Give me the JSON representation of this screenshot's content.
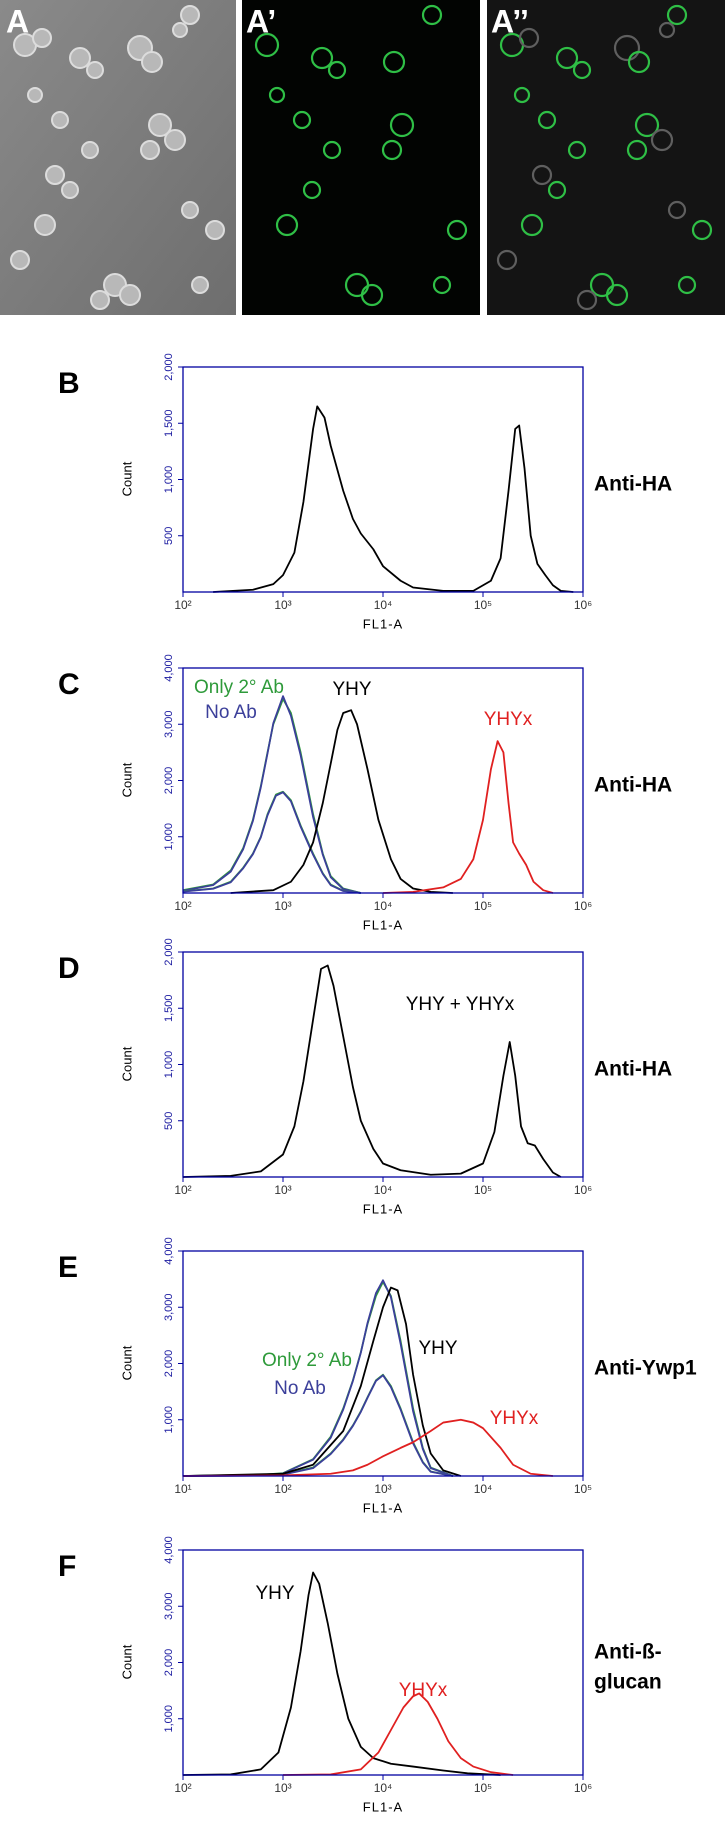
{
  "micrographs": {
    "a": "A",
    "a_prime": "A’",
    "a_double_prime": "A’’"
  },
  "chart_data": [
    {
      "type": "line",
      "panel": "B",
      "side_label": [
        "Anti-HA"
      ],
      "xlabel": "FL1-A",
      "ylabel": "Count",
      "xscale": "log",
      "xlim": [
        100,
        1000000
      ],
      "xticks": [
        {
          "value": 100,
          "label": "10²"
        },
        {
          "value": 1000,
          "label": "10³"
        },
        {
          "value": 10000,
          "label": "10⁴"
        },
        {
          "value": 100000,
          "label": "10⁵"
        },
        {
          "value": 1000000,
          "label": "10⁶"
        }
      ],
      "ylim": [
        0,
        2000
      ],
      "yticks": [
        500,
        {
          "value": 1000,
          "label": "1,000"
        },
        {
          "value": 1500,
          "label": "1,500"
        },
        {
          "value": 2000,
          "label": "2,000"
        }
      ],
      "series": [
        {
          "color": "#000000",
          "x": [
            200,
            500,
            800,
            1000,
            1300,
            1600,
            2000,
            2200,
            2600,
            3000,
            4000,
            5000,
            6000,
            8000,
            10000,
            15000,
            20000,
            40000,
            80000,
            120000,
            150000,
            180000,
            210000,
            230000,
            260000,
            300000,
            350000,
            420000,
            500000,
            600000,
            800000
          ],
          "values": [
            0,
            20,
            70,
            150,
            350,
            800,
            1450,
            1650,
            1550,
            1300,
            900,
            650,
            520,
            380,
            230,
            100,
            40,
            10,
            10,
            100,
            300,
            900,
            1450,
            1480,
            1100,
            500,
            250,
            150,
            60,
            10,
            0
          ]
        }
      ]
    },
    {
      "type": "line",
      "panel": "C",
      "side_label": [
        "Anti-HA"
      ],
      "xlabel": "FL1-A",
      "ylabel": "Count",
      "xscale": "log",
      "xlim": [
        100,
        1000000
      ],
      "xticks": [
        {
          "value": 100,
          "label": "10²"
        },
        {
          "value": 1000,
          "label": "10³"
        },
        {
          "value": 10000,
          "label": "10⁴"
        },
        {
          "value": 100000,
          "label": "10⁵"
        },
        {
          "value": 1000000,
          "label": "10⁶"
        }
      ],
      "ylim": [
        0,
        4000
      ],
      "yticks": [
        {
          "value": 1000,
          "label": "1,000"
        },
        {
          "value": 2000,
          "label": "2,000"
        },
        {
          "value": 3000,
          "label": "3,000"
        },
        {
          "value": 4000,
          "label": "4,000"
        }
      ],
      "series": [
        {
          "name": "Only 2° Ab",
          "color": "#2e9a3a",
          "x": [
            100,
            200,
            300,
            400,
            500,
            600,
            700,
            800,
            1000,
            1200,
            1500,
            2000,
            2500,
            3000,
            4000,
            6000
          ],
          "values": [
            50,
            150,
            400,
            800,
            1300,
            1900,
            2500,
            3000,
            3450,
            3200,
            2500,
            1400,
            700,
            300,
            80,
            0
          ]
        },
        {
          "name": "No Ab",
          "color": "#3b3f9a",
          "x": [
            100,
            200,
            300,
            400,
            500,
            600,
            700,
            800,
            1000,
            1200,
            1500,
            2000,
            2500,
            3000,
            4000,
            6000
          ],
          "values": [
            40,
            140,
            380,
            780,
            1280,
            1880,
            2480,
            3020,
            3500,
            3150,
            2450,
            1350,
            680,
            280,
            70,
            0
          ]
        },
        {
          "color": "#2e9a3a",
          "x": [
            100,
            200,
            300,
            400,
            500,
            600,
            700,
            850,
            1000,
            1200,
            1500,
            2000,
            2500,
            3000,
            4000,
            6000
          ],
          "values": [
            30,
            80,
            200,
            450,
            700,
            1000,
            1400,
            1750,
            1800,
            1650,
            1200,
            700,
            350,
            150,
            40,
            0
          ]
        },
        {
          "color": "#3b3f9a",
          "x": [
            100,
            200,
            300,
            400,
            500,
            600,
            700,
            850,
            1000,
            1200,
            1500,
            2000,
            2500,
            3000,
            4000,
            6000
          ],
          "values": [
            25,
            75,
            190,
            440,
            690,
            990,
            1380,
            1730,
            1790,
            1630,
            1180,
            680,
            340,
            140,
            35,
            0
          ]
        },
        {
          "name": "YHY",
          "color": "#000000",
          "x": [
            300,
            800,
            1200,
            1600,
            2000,
            2500,
            3000,
            3500,
            4000,
            4800,
            5500,
            7000,
            9000,
            12000,
            15000,
            20000,
            30000,
            50000
          ],
          "values": [
            0,
            50,
            200,
            500,
            900,
            1600,
            2300,
            2900,
            3200,
            3250,
            3000,
            2200,
            1300,
            600,
            250,
            80,
            20,
            0
          ]
        },
        {
          "name": "YHYx",
          "color": "#e02020",
          "x": [
            10000,
            20000,
            40000,
            60000,
            80000,
            100000,
            120000,
            140000,
            160000,
            180000,
            200000,
            230000,
            270000,
            320000,
            400000,
            500000
          ],
          "values": [
            0,
            20,
            100,
            250,
            600,
            1300,
            2200,
            2700,
            2500,
            1600,
            900,
            700,
            500,
            200,
            50,
            0
          ]
        }
      ]
    },
    {
      "type": "line",
      "panel": "D",
      "side_label": [
        "Anti-HA"
      ],
      "xlabel": "FL1-A",
      "ylabel": "Count",
      "xscale": "log",
      "xlim": [
        100,
        1000000
      ],
      "xticks": [
        {
          "value": 100,
          "label": "10²"
        },
        {
          "value": 1000,
          "label": "10³"
        },
        {
          "value": 10000,
          "label": "10⁴"
        },
        {
          "value": 100000,
          "label": "10⁵"
        },
        {
          "value": 1000000,
          "label": "10⁶"
        }
      ],
      "ylim": [
        0,
        2000
      ],
      "yticks": [
        500,
        {
          "value": 1000,
          "label": "1,000"
        },
        {
          "value": 1500,
          "label": "1,500"
        },
        {
          "value": 2000,
          "label": "2,000"
        }
      ],
      "series": [
        {
          "name": "YHY + YHYx",
          "color": "#000000",
          "x": [
            100,
            300,
            600,
            1000,
            1300,
            1600,
            2000,
            2400,
            2800,
            3200,
            4000,
            5000,
            6000,
            8000,
            10000,
            15000,
            30000,
            60000,
            100000,
            130000,
            160000,
            185000,
            210000,
            240000,
            280000,
            330000,
            400000,
            500000,
            600000
          ],
          "values": [
            0,
            10,
            50,
            200,
            450,
            850,
            1400,
            1850,
            1880,
            1700,
            1250,
            800,
            500,
            250,
            120,
            60,
            20,
            30,
            120,
            400,
            900,
            1200,
            900,
            450,
            300,
            280,
            160,
            40,
            0
          ]
        }
      ]
    },
    {
      "type": "line",
      "panel": "E",
      "side_label": [
        "Anti-Ywp1"
      ],
      "xlabel": "FL1-A",
      "ylabel": "Count",
      "xscale": "log",
      "xlim": [
        10,
        100000
      ],
      "xticks": [
        {
          "value": 10,
          "label": "10¹"
        },
        {
          "value": 100,
          "label": "10²"
        },
        {
          "value": 1000,
          "label": "10³"
        },
        {
          "value": 10000,
          "label": "10⁴"
        },
        {
          "value": 100000,
          "label": "10⁵"
        }
      ],
      "ylim": [
        0,
        4000
      ],
      "yticks": [
        {
          "value": 1000,
          "label": "1,000"
        },
        {
          "value": 2000,
          "label": "2,000"
        },
        {
          "value": 3000,
          "label": "3,000"
        },
        {
          "value": 4000,
          "label": "4,000"
        }
      ],
      "series": [
        {
          "name": "Only 2° Ab",
          "color": "#2e9a3a",
          "x": [
            10,
            50,
            100,
            200,
            300,
            400,
            500,
            600,
            700,
            850,
            1000,
            1200,
            1500,
            2000,
            2500,
            3000,
            5000
          ],
          "values": [
            0,
            10,
            50,
            300,
            700,
            1200,
            1700,
            2200,
            2700,
            3200,
            3450,
            3200,
            2400,
            1200,
            500,
            150,
            0
          ]
        },
        {
          "name": "No Ab",
          "color": "#3b3f9a",
          "x": [
            10,
            50,
            100,
            200,
            300,
            400,
            500,
            600,
            700,
            850,
            1000,
            1200,
            1500,
            2000,
            2500,
            3000,
            5000
          ],
          "values": [
            0,
            8,
            45,
            290,
            680,
            1180,
            1690,
            2190,
            2720,
            3250,
            3480,
            3180,
            2350,
            1150,
            480,
            140,
            0
          ]
        },
        {
          "color": "#2e9a3a",
          "x": [
            10,
            100,
            200,
            300,
            400,
            500,
            600,
            700,
            850,
            1000,
            1200,
            1500,
            2000,
            2500,
            3000,
            5000
          ],
          "values": [
            0,
            30,
            150,
            400,
            650,
            900,
            1150,
            1400,
            1700,
            1800,
            1600,
            1200,
            600,
            250,
            80,
            0
          ]
        },
        {
          "color": "#3b3f9a",
          "x": [
            10,
            100,
            200,
            300,
            400,
            500,
            600,
            700,
            850,
            1000,
            1200,
            1500,
            2000,
            2500,
            3000,
            5000
          ],
          "values": [
            0,
            25,
            140,
            390,
            640,
            890,
            1140,
            1390,
            1690,
            1790,
            1580,
            1180,
            580,
            240,
            75,
            0
          ]
        },
        {
          "name": "YHY",
          "color": "#000000",
          "x": [
            10,
            100,
            200,
            400,
            600,
            800,
            1000,
            1200,
            1400,
            1700,
            2000,
            2500,
            3000,
            4000,
            6000
          ],
          "values": [
            0,
            40,
            200,
            800,
            1600,
            2400,
            3000,
            3350,
            3300,
            2700,
            1800,
            900,
            400,
            100,
            0
          ]
        },
        {
          "name": "YHYx",
          "color": "#e02020",
          "x": [
            10,
            100,
            300,
            500,
            700,
            1000,
            1500,
            2000,
            3000,
            4000,
            6000,
            8000,
            10000,
            15000,
            20000,
            30000,
            50000
          ],
          "values": [
            0,
            10,
            40,
            100,
            200,
            350,
            500,
            600,
            800,
            950,
            1000,
            950,
            850,
            500,
            200,
            40,
            0
          ]
        }
      ]
    },
    {
      "type": "line",
      "panel": "F",
      "side_label": [
        "Anti-ß-",
        "glucan"
      ],
      "xlabel": "FL1-A",
      "ylabel": "Count",
      "xscale": "log",
      "xlim": [
        100,
        1000000
      ],
      "xticks": [
        {
          "value": 100,
          "label": "10²"
        },
        {
          "value": 1000,
          "label": "10³"
        },
        {
          "value": 10000,
          "label": "10⁴"
        },
        {
          "value": 100000,
          "label": "10⁵"
        },
        {
          "value": 1000000,
          "label": "10⁶"
        }
      ],
      "ylim": [
        0,
        4000
      ],
      "yticks": [
        {
          "value": 1000,
          "label": "1,000"
        },
        {
          "value": 2000,
          "label": "2,000"
        },
        {
          "value": 3000,
          "label": "3,000"
        },
        {
          "value": 4000,
          "label": "4,000"
        }
      ],
      "series": [
        {
          "name": "YHY",
          "color": "#000000",
          "x": [
            100,
            300,
            600,
            900,
            1200,
            1500,
            1800,
            2000,
            2300,
            2800,
            3500,
            4500,
            6000,
            8000,
            12000,
            20000,
            40000,
            70000,
            150000
          ],
          "values": [
            0,
            10,
            100,
            400,
            1200,
            2200,
            3200,
            3600,
            3400,
            2700,
            1800,
            1000,
            500,
            300,
            200,
            150,
            80,
            30,
            0
          ]
        },
        {
          "name": "YHYx",
          "color": "#e02020",
          "x": [
            1000,
            3000,
            6000,
            9000,
            12000,
            16000,
            20000,
            23000,
            28000,
            35000,
            45000,
            60000,
            80000,
            120000,
            200000
          ],
          "values": [
            0,
            10,
            100,
            400,
            800,
            1200,
            1400,
            1450,
            1300,
            1000,
            600,
            300,
            150,
            50,
            0
          ]
        }
      ]
    }
  ]
}
